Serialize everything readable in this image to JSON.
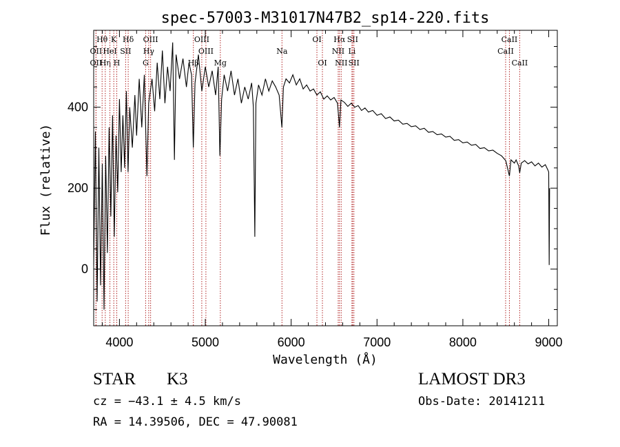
{
  "chart_data": {
    "type": "line",
    "title": "spec-57003-M31017N47B2_sp14-220.fits",
    "xlabel": "Wavelength (Å)",
    "ylabel": "Flux (relative)",
    "xlim": [
      3700,
      9100
    ],
    "ylim": [
      -140,
      590
    ],
    "xticks": [
      4000,
      5000,
      6000,
      7000,
      8000,
      9000
    ],
    "yticks": [
      0,
      200,
      400
    ],
    "grid": false,
    "series": [
      {
        "name": "spectrum",
        "points": [
          [
            3700,
            10
          ],
          [
            3720,
            340
          ],
          [
            3740,
            -80
          ],
          [
            3760,
            300
          ],
          [
            3780,
            -40
          ],
          [
            3800,
            260
          ],
          [
            3820,
            -100
          ],
          [
            3840,
            280
          ],
          [
            3860,
            40
          ],
          [
            3880,
            350
          ],
          [
            3900,
            130
          ],
          [
            3920,
            380
          ],
          [
            3940,
            80
          ],
          [
            3960,
            330
          ],
          [
            3980,
            190
          ],
          [
            4000,
            420
          ],
          [
            4020,
            240
          ],
          [
            4040,
            380
          ],
          [
            4060,
            250
          ],
          [
            4080,
            440
          ],
          [
            4100,
            240
          ],
          [
            4120,
            400
          ],
          [
            4150,
            300
          ],
          [
            4180,
            430
          ],
          [
            4200,
            330
          ],
          [
            4230,
            470
          ],
          [
            4260,
            350
          ],
          [
            4290,
            480
          ],
          [
            4320,
            230
          ],
          [
            4340,
            410
          ],
          [
            4380,
            470
          ],
          [
            4410,
            390
          ],
          [
            4440,
            510
          ],
          [
            4470,
            420
          ],
          [
            4500,
            540
          ],
          [
            4530,
            410
          ],
          [
            4560,
            500
          ],
          [
            4590,
            440
          ],
          [
            4620,
            560
          ],
          [
            4640,
            270
          ],
          [
            4660,
            530
          ],
          [
            4700,
            470
          ],
          [
            4740,
            520
          ],
          [
            4780,
            450
          ],
          [
            4810,
            510
          ],
          [
            4840,
            480
          ],
          [
            4860,
            300
          ],
          [
            4880,
            460
          ],
          [
            4920,
            530
          ],
          [
            4960,
            440
          ],
          [
            5000,
            500
          ],
          [
            5040,
            450
          ],
          [
            5080,
            490
          ],
          [
            5120,
            430
          ],
          [
            5150,
            500
          ],
          [
            5170,
            280
          ],
          [
            5190,
            420
          ],
          [
            5220,
            480
          ],
          [
            5260,
            440
          ],
          [
            5300,
            490
          ],
          [
            5340,
            430
          ],
          [
            5380,
            470
          ],
          [
            5420,
            410
          ],
          [
            5460,
            450
          ],
          [
            5500,
            420
          ],
          [
            5540,
            460
          ],
          [
            5560,
            400
          ],
          [
            5577,
            80
          ],
          [
            5590,
            410
          ],
          [
            5620,
            455
          ],
          [
            5660,
            430
          ],
          [
            5700,
            470
          ],
          [
            5740,
            440
          ],
          [
            5780,
            465
          ],
          [
            5820,
            450
          ],
          [
            5860,
            430
          ],
          [
            5892,
            350
          ],
          [
            5910,
            450
          ],
          [
            5940,
            470
          ],
          [
            5980,
            460
          ],
          [
            6020,
            480
          ],
          [
            6060,
            455
          ],
          [
            6100,
            470
          ],
          [
            6140,
            445
          ],
          [
            6180,
            455
          ],
          [
            6220,
            440
          ],
          [
            6260,
            445
          ],
          [
            6300,
            430
          ],
          [
            6340,
            438
          ],
          [
            6380,
            420
          ],
          [
            6420,
            428
          ],
          [
            6460,
            418
          ],
          [
            6500,
            424
          ],
          [
            6540,
            410
          ],
          [
            6563,
            350
          ],
          [
            6580,
            418
          ],
          [
            6620,
            412
          ],
          [
            6660,
            402
          ],
          [
            6700,
            410
          ],
          [
            6740,
            400
          ],
          [
            6780,
            404
          ],
          [
            6820,
            392
          ],
          [
            6860,
            398
          ],
          [
            6900,
            388
          ],
          [
            6950,
            392
          ],
          [
            7000,
            380
          ],
          [
            7050,
            384
          ],
          [
            7100,
            372
          ],
          [
            7150,
            376
          ],
          [
            7200,
            366
          ],
          [
            7250,
            368
          ],
          [
            7300,
            358
          ],
          [
            7350,
            360
          ],
          [
            7400,
            352
          ],
          [
            7450,
            354
          ],
          [
            7500,
            345
          ],
          [
            7550,
            348
          ],
          [
            7600,
            338
          ],
          [
            7650,
            340
          ],
          [
            7700,
            332
          ],
          [
            7750,
            334
          ],
          [
            7800,
            326
          ],
          [
            7850,
            328
          ],
          [
            7900,
            318
          ],
          [
            7950,
            320
          ],
          [
            8000,
            312
          ],
          [
            8050,
            314
          ],
          [
            8100,
            306
          ],
          [
            8150,
            308
          ],
          [
            8200,
            298
          ],
          [
            8250,
            300
          ],
          [
            8300,
            292
          ],
          [
            8350,
            294
          ],
          [
            8400,
            286
          ],
          [
            8450,
            280
          ],
          [
            8500,
            268
          ],
          [
            8542,
            230
          ],
          [
            8560,
            270
          ],
          [
            8600,
            262
          ],
          [
            8620,
            270
          ],
          [
            8650,
            255
          ],
          [
            8662,
            238
          ],
          [
            8680,
            262
          ],
          [
            8720,
            268
          ],
          [
            8760,
            260
          ],
          [
            8800,
            265
          ],
          [
            8840,
            255
          ],
          [
            8880,
            262
          ],
          [
            8920,
            252
          ],
          [
            8960,
            258
          ],
          [
            8990,
            245
          ],
          [
            9000,
            240
          ],
          [
            9005,
            10
          ],
          [
            9010,
            200
          ]
        ]
      }
    ],
    "lines": [
      {
        "label": "Hθ",
        "x": 3798,
        "row": 1
      },
      {
        "label": "OII",
        "x": 3727,
        "row": 2
      },
      {
        "label": "OII",
        "x": 3727,
        "row": 3
      },
      {
        "label": "Hη",
        "x": 3835,
        "row": 3
      },
      {
        "label": "K",
        "x": 3934,
        "row": 1
      },
      {
        "label": "HeI",
        "x": 3889,
        "row": 2
      },
      {
        "label": "H",
        "x": 3969,
        "row": 3
      },
      {
        "label": "Hδ",
        "x": 4102,
        "row": 1
      },
      {
        "label": "SII",
        "x": 4072,
        "row": 2
      },
      {
        "label": "OIII",
        "x": 4363,
        "row": 1
      },
      {
        "label": "Hγ",
        "x": 4341,
        "row": 2
      },
      {
        "label": "G",
        "x": 4305,
        "row": 3
      },
      {
        "label": "OIII",
        "x": 4959,
        "row": 1
      },
      {
        "label": "OIII",
        "x": 5007,
        "row": 2
      },
      {
        "label": "Hβ",
        "x": 4861,
        "row": 3
      },
      {
        "label": "Mg",
        "x": 5175,
        "row": 3
      },
      {
        "label": "Na",
        "x": 5893,
        "row": 2
      },
      {
        "label": "OI",
        "x": 6300,
        "row": 1
      },
      {
        "label": "OI",
        "x": 6364,
        "row": 3
      },
      {
        "label": "Hα",
        "x": 6563,
        "row": 1
      },
      {
        "label": "NII",
        "x": 6548,
        "row": 2
      },
      {
        "label": "NII",
        "x": 6583,
        "row": 3
      },
      {
        "label": "SII",
        "x": 6716,
        "row": 1
      },
      {
        "label": "Li",
        "x": 6708,
        "row": 2
      },
      {
        "label": "SII",
        "x": 6731,
        "row": 3
      },
      {
        "label": "CaII",
        "x": 8542,
        "row": 1
      },
      {
        "label": "CaII",
        "x": 8498,
        "row": 2
      },
      {
        "label": "CaII",
        "x": 8662,
        "row": 3
      }
    ]
  },
  "info": {
    "object_class": "STAR",
    "subclass": "K3",
    "survey": "LAMOST DR3",
    "cz": "cz = −43.1 ± 4.5 km/s",
    "obs_date": "Obs-Date: 20141211",
    "coords": "RA =  14.39506, DEC =  47.90081"
  },
  "colors": {
    "line_marker": "#b02020",
    "spectrum": "#000000"
  }
}
